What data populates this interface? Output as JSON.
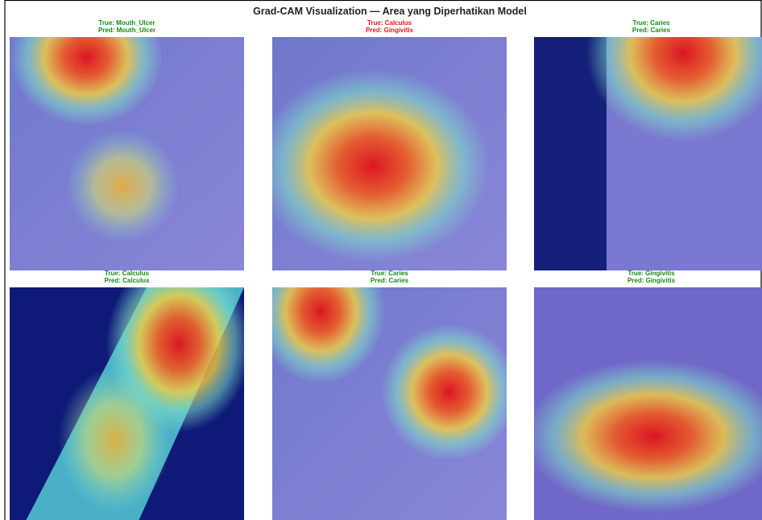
{
  "title": "Grad-CAM Visualization — Area yang Diperhatikan Model",
  "panels": [
    {
      "true_label": "True: Mouth_Ulcer",
      "pred_label": "Pred: Mouth_Ulcer",
      "color": "#138a13"
    },
    {
      "true_label": "True: Calculus",
      "pred_label": "Pred: Gingivitis",
      "color": "#e01818"
    },
    {
      "true_label": "True: Caries",
      "pred_label": "Pred: Caries",
      "color": "#138a13"
    },
    {
      "true_label": "True: Calculus",
      "pred_label": "Pred: Calculus",
      "color": "#138a13"
    },
    {
      "true_label": "True: Caries",
      "pred_label": "Pred: Caries",
      "color": "#138a13"
    },
    {
      "true_label": "True: Gingivitis",
      "pred_label": "Pred: Gingivitis",
      "color": "#138a13"
    }
  ]
}
